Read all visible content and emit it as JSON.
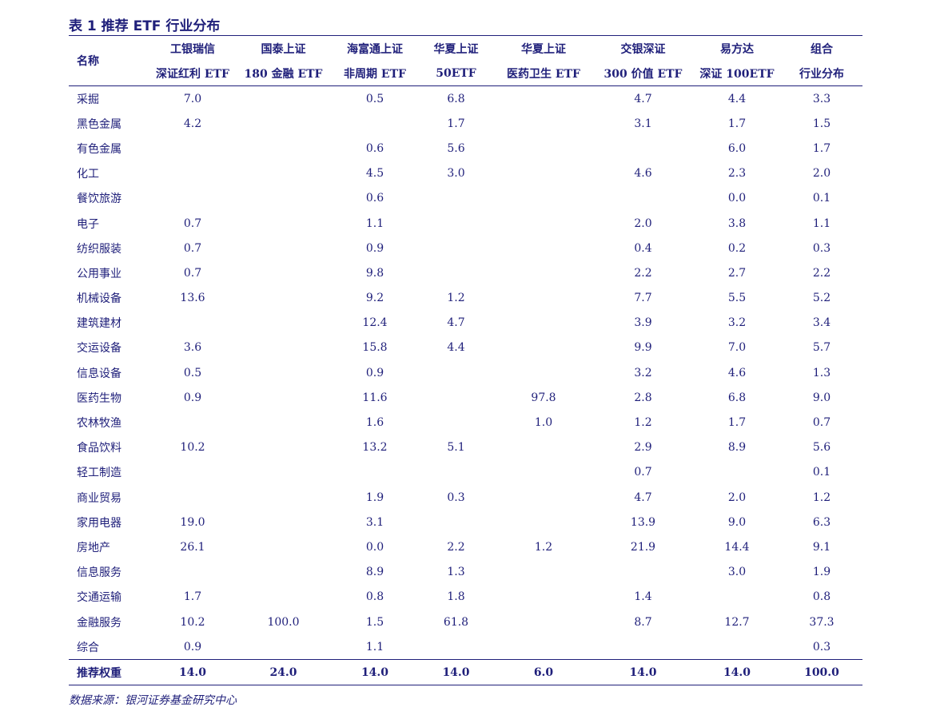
{
  "title": "表 1 推荐 ETF 行业分布",
  "table": {
    "name_header": "名称",
    "columns": [
      {
        "line1": "工银瑞信",
        "line2": "深证红利 ETF"
      },
      {
        "line1": "国泰上证",
        "line2": "180 金融 ETF"
      },
      {
        "line1": "海富通上证",
        "line2": "非周期 ETF"
      },
      {
        "line1": "华夏上证",
        "line2": "50ETF"
      },
      {
        "line1": "华夏上证",
        "line2": "医药卫生 ETF"
      },
      {
        "line1": "交银深证",
        "line2": "300 价值 ETF"
      },
      {
        "line1": "易方达",
        "line2": "深证 100ETF"
      },
      {
        "line1": "组合",
        "line2": "行业分布"
      }
    ],
    "rows": [
      {
        "name": "采掘",
        "values": [
          "7.0",
          "",
          "0.5",
          "6.8",
          "",
          "4.7",
          "4.4",
          "3.3"
        ]
      },
      {
        "name": "黑色金属",
        "values": [
          "4.2",
          "",
          "",
          "1.7",
          "",
          "3.1",
          "1.7",
          "1.5"
        ]
      },
      {
        "name": "有色金属",
        "values": [
          "",
          "",
          "0.6",
          "5.6",
          "",
          "",
          "6.0",
          "1.7"
        ]
      },
      {
        "name": "化工",
        "values": [
          "",
          "",
          "4.5",
          "3.0",
          "",
          "4.6",
          "2.3",
          "2.0"
        ]
      },
      {
        "name": "餐饮旅游",
        "values": [
          "",
          "",
          "0.6",
          "",
          "",
          "",
          "0.0",
          "0.1"
        ]
      },
      {
        "name": "电子",
        "values": [
          "0.7",
          "",
          "1.1",
          "",
          "",
          "2.0",
          "3.8",
          "1.1"
        ]
      },
      {
        "name": "纺织服装",
        "values": [
          "0.7",
          "",
          "0.9",
          "",
          "",
          "0.4",
          "0.2",
          "0.3"
        ]
      },
      {
        "name": "公用事业",
        "values": [
          "0.7",
          "",
          "9.8",
          "",
          "",
          "2.2",
          "2.7",
          "2.2"
        ]
      },
      {
        "name": "机械设备",
        "values": [
          "13.6",
          "",
          "9.2",
          "1.2",
          "",
          "7.7",
          "5.5",
          "5.2"
        ]
      },
      {
        "name": "建筑建材",
        "values": [
          "",
          "",
          "12.4",
          "4.7",
          "",
          "3.9",
          "3.2",
          "3.4"
        ]
      },
      {
        "name": "交运设备",
        "values": [
          "3.6",
          "",
          "15.8",
          "4.4",
          "",
          "9.9",
          "7.0",
          "5.7"
        ]
      },
      {
        "name": "信息设备",
        "values": [
          "0.5",
          "",
          "0.9",
          "",
          "",
          "3.2",
          "4.6",
          "1.3"
        ]
      },
      {
        "name": "医药生物",
        "values": [
          "0.9",
          "",
          "11.6",
          "",
          "97.8",
          "2.8",
          "6.8",
          "9.0"
        ]
      },
      {
        "name": "农林牧渔",
        "values": [
          "",
          "",
          "1.6",
          "",
          "1.0",
          "1.2",
          "1.7",
          "0.7"
        ]
      },
      {
        "name": "食品饮料",
        "values": [
          "10.2",
          "",
          "13.2",
          "5.1",
          "",
          "2.9",
          "8.9",
          "5.6"
        ]
      },
      {
        "name": "轻工制造",
        "values": [
          "",
          "",
          "",
          "",
          "",
          "0.7",
          "",
          "0.1"
        ]
      },
      {
        "name": "商业贸易",
        "values": [
          "",
          "",
          "1.9",
          "0.3",
          "",
          "4.7",
          "2.0",
          "1.2"
        ]
      },
      {
        "name": "家用电器",
        "values": [
          "19.0",
          "",
          "3.1",
          "",
          "",
          "13.9",
          "9.0",
          "6.3"
        ]
      },
      {
        "name": "房地产",
        "values": [
          "26.1",
          "",
          "0.0",
          "2.2",
          "1.2",
          "21.9",
          "14.4",
          "9.1"
        ]
      },
      {
        "name": "信息服务",
        "values": [
          "",
          "",
          "8.9",
          "1.3",
          "",
          "",
          "3.0",
          "1.9"
        ]
      },
      {
        "name": "交通运输",
        "values": [
          "1.7",
          "",
          "0.8",
          "1.8",
          "",
          "1.4",
          "",
          "0.8"
        ]
      },
      {
        "name": "金融服务",
        "values": [
          "10.2",
          "100.0",
          "1.5",
          "61.8",
          "",
          "8.7",
          "12.7",
          "37.3"
        ]
      },
      {
        "name": "综合",
        "values": [
          "0.9",
          "",
          "1.1",
          "",
          "",
          "",
          "",
          "0.3"
        ]
      }
    ],
    "footer": {
      "name": "推荐权重",
      "values": [
        "14.0",
        "24.0",
        "14.0",
        "14.0",
        "6.0",
        "14.0",
        "14.0",
        "100.0"
      ]
    }
  },
  "source": "数据来源：银河证券基金研究中心"
}
